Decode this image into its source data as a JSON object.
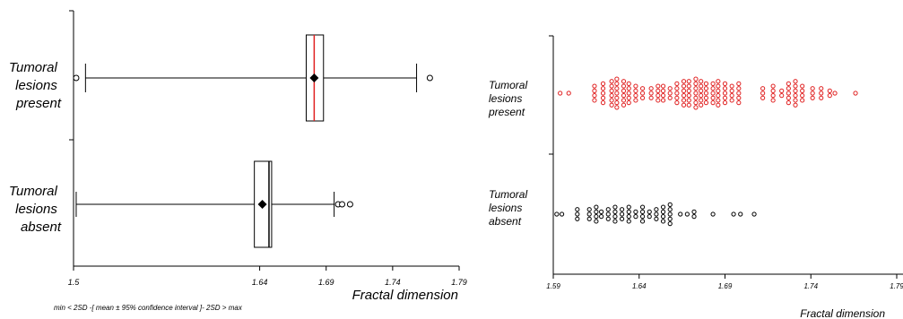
{
  "chart_data": [
    {
      "type": "box",
      "xlabel": "Fractal dimension",
      "caption": "min < 2SD -[ mean ± 95% confidence interval ]- 2SD > max",
      "xlim": [
        1.5,
        1.79
      ],
      "ticks": [
        "1.5",
        "1.64",
        "1.69",
        "1.74",
        "1.79"
      ],
      "groups": [
        {
          "label": [
            "Tumoral",
            "lesions",
            "present"
          ],
          "min": 1.502,
          "whisker_low": 1.509,
          "box_low": 1.675,
          "median": 1.681,
          "mean": 1.681,
          "box_high": 1.688,
          "whisker_high": 1.758,
          "max": 1.768,
          "mean_color": "#000000",
          "median_color": "#e02020",
          "outliers": [
            1.502,
            1.768
          ]
        },
        {
          "label": [
            "Tumoral",
            "lesions",
            "absent"
          ],
          "min": 1.502,
          "whisker_low": 1.502,
          "box_low": 1.636,
          "median": 1.647,
          "mean": 1.642,
          "box_high": 1.649,
          "whisker_high": 1.696,
          "max": 1.708,
          "mean_color": "#000000",
          "median_color": "#000000",
          "outliers": [
            1.699,
            1.702,
            1.708
          ]
        }
      ]
    },
    {
      "type": "scatter",
      "xlabel": "Fractal dimension",
      "xlim": [
        1.59,
        1.79
      ],
      "ticks": [
        "1.59",
        "1.64",
        "1.69",
        "1.74",
        "1.79"
      ],
      "groups": [
        {
          "label": [
            "Tumoral",
            "lesions",
            "present"
          ],
          "color": "#e02020",
          "points": [
            [
              1.594,
              1
            ],
            [
              1.599,
              1
            ],
            [
              1.614,
              4
            ],
            [
              1.619,
              5
            ],
            [
              1.624,
              6
            ],
            [
              1.627,
              7
            ],
            [
              1.631,
              6
            ],
            [
              1.634,
              5
            ],
            [
              1.638,
              4
            ],
            [
              1.642,
              3
            ],
            [
              1.647,
              3
            ],
            [
              1.651,
              4
            ],
            [
              1.654,
              4
            ],
            [
              1.658,
              3
            ],
            [
              1.662,
              5
            ],
            [
              1.666,
              6
            ],
            [
              1.669,
              6
            ],
            [
              1.673,
              7
            ],
            [
              1.676,
              6
            ],
            [
              1.679,
              5
            ],
            [
              1.683,
              5
            ],
            [
              1.686,
              6
            ],
            [
              1.69,
              5
            ],
            [
              1.694,
              4
            ],
            [
              1.698,
              5
            ],
            [
              1.712,
              3
            ],
            [
              1.718,
              4
            ],
            [
              1.723,
              2
            ],
            [
              1.727,
              5
            ],
            [
              1.731,
              6
            ],
            [
              1.735,
              4
            ],
            [
              1.741,
              3
            ],
            [
              1.746,
              3
            ],
            [
              1.751,
              2
            ],
            [
              1.754,
              1
            ],
            [
              1.766,
              1
            ]
          ]
        },
        {
          "label": [
            "Tumoral",
            "lesions",
            "absent"
          ],
          "color": "#000000",
          "points": [
            [
              1.592,
              1
            ],
            [
              1.595,
              1
            ],
            [
              1.604,
              3
            ],
            [
              1.611,
              3
            ],
            [
              1.615,
              4
            ],
            [
              1.618,
              2
            ],
            [
              1.622,
              3
            ],
            [
              1.626,
              4
            ],
            [
              1.63,
              3
            ],
            [
              1.634,
              4
            ],
            [
              1.638,
              2
            ],
            [
              1.642,
              4
            ],
            [
              1.646,
              2
            ],
            [
              1.65,
              3
            ],
            [
              1.654,
              4
            ],
            [
              1.658,
              5
            ],
            [
              1.664,
              1
            ],
            [
              1.668,
              1
            ],
            [
              1.672,
              2
            ],
            [
              1.683,
              1
            ],
            [
              1.695,
              1
            ],
            [
              1.699,
              1
            ],
            [
              1.707,
              1
            ]
          ]
        }
      ]
    }
  ]
}
